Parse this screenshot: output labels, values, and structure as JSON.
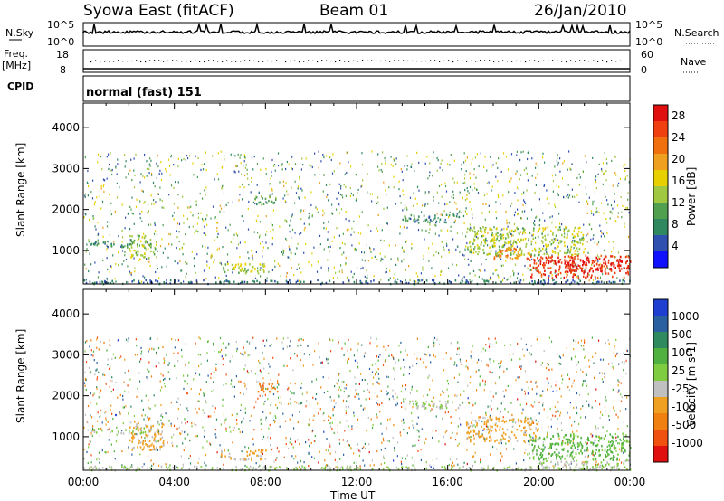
{
  "header": {
    "station": "Syowa East (fitACF)",
    "beam": "Beam 01",
    "date": "26/Jan/2010"
  },
  "strip_labels": {
    "nsky": "N.Sky",
    "nsearch": "N.Search",
    "freq_line1": "Freq.",
    "freq_line2": "[MHz]",
    "nave": "Nave",
    "cpid": "CPID",
    "cpid_value": "normal (fast) 151",
    "noise_ticks_top": "10^5",
    "noise_ticks_bottom": "10^0",
    "freq_ticks": [
      "18",
      "8"
    ],
    "nave_ticks": [
      "60",
      "0"
    ]
  },
  "chart_data": [
    {
      "type": "heatmap",
      "title": "",
      "xlabel": "Time UT",
      "ylabel": "Slant Range [km]",
      "x_ticks": [
        "00:00",
        "04:00",
        "08:00",
        "12:00",
        "16:00",
        "20:00",
        "00:00"
      ],
      "y_ticks": [
        1000,
        2000,
        3000,
        4000
      ],
      "ylim": [
        180,
        4600
      ],
      "xlim_hours": [
        0,
        24
      ],
      "colorbar": {
        "label": "Power [dB]",
        "ticks": [
          "4",
          "8",
          "12",
          "16",
          "20",
          "24",
          "28"
        ],
        "range": [
          0,
          30
        ],
        "colors": [
          "#1010ff",
          "#3050b0",
          "#308860",
          "#50a050",
          "#a0c840",
          "#e8d000",
          "#f0a020",
          "#f07010",
          "#f04010",
          "#e01010"
        ]
      },
      "features": [
        {
          "t0": 0.0,
          "t1": 24.0,
          "r0": 200,
          "r1": 300,
          "value": 6
        },
        {
          "t0": 0.3,
          "t1": 3.0,
          "r0": 1100,
          "r1": 1250,
          "value": 8
        },
        {
          "t0": 2.0,
          "t1": 3.2,
          "r0": 800,
          "r1": 1400,
          "value": 14
        },
        {
          "t0": 6.0,
          "t1": 8.0,
          "r0": 450,
          "r1": 700,
          "value": 14
        },
        {
          "t0": 7.5,
          "t1": 8.5,
          "r0": 2100,
          "r1": 2350,
          "value": 10
        },
        {
          "t0": 16.8,
          "t1": 22.0,
          "r0": 900,
          "r1": 1600,
          "value": 14
        },
        {
          "t0": 18.0,
          "t1": 19.5,
          "r0": 800,
          "r1": 1100,
          "value": 22
        },
        {
          "t0": 19.5,
          "t1": 24.0,
          "r0": 350,
          "r1": 900,
          "value": 26
        },
        {
          "t0": 20.5,
          "t1": 24.0,
          "r0": 500,
          "r1": 800,
          "value": 28
        },
        {
          "t0": 14.0,
          "t1": 16.5,
          "r0": 1700,
          "r1": 1900,
          "value": 8
        }
      ]
    },
    {
      "type": "heatmap",
      "title": "",
      "xlabel": "Time UT",
      "ylabel": "Slant Range [km]",
      "x_ticks": [
        "00:00",
        "04:00",
        "08:00",
        "12:00",
        "16:00",
        "20:00",
        "00:00"
      ],
      "y_ticks": [
        1000,
        2000,
        3000,
        4000
      ],
      "ylim": [
        180,
        4600
      ],
      "xlim_hours": [
        0,
        24
      ],
      "colorbar": {
        "label": "Velocity [m s-1]",
        "ticks": [
          "1000",
          "500",
          "100",
          "25",
          "-25",
          "-100",
          "-500",
          "-1000"
        ],
        "range": [
          -1200,
          1200
        ],
        "colors": [
          "#1f3fd0",
          "#2a60a0",
          "#2f8a60",
          "#50b040",
          "#80cc40",
          "#c0c0c0",
          "#f0a020",
          "#f08010",
          "#f05010",
          "#e01010"
        ]
      },
      "features": [
        {
          "t0": 0.0,
          "t1": 24.0,
          "r0": 200,
          "r1": 300,
          "value": 0
        },
        {
          "t0": 0.3,
          "t1": 3.0,
          "r0": 1100,
          "r1": 1250,
          "value": 0
        },
        {
          "t0": 2.0,
          "t1": 3.5,
          "r0": 700,
          "r1": 1400,
          "value": -300
        },
        {
          "t0": 6.0,
          "t1": 8.0,
          "r0": 450,
          "r1": 700,
          "value": -250
        },
        {
          "t0": 7.5,
          "t1": 8.5,
          "r0": 2100,
          "r1": 2350,
          "value": -600
        },
        {
          "t0": 16.8,
          "t1": 20.0,
          "r0": 900,
          "r1": 1500,
          "value": -300
        },
        {
          "t0": 19.5,
          "t1": 24.0,
          "r0": 450,
          "r1": 1100,
          "value": 300
        },
        {
          "t0": 20.0,
          "t1": 24.0,
          "r0": 250,
          "r1": 450,
          "value": 0
        },
        {
          "t0": 14.0,
          "t1": 16.5,
          "r0": 1700,
          "r1": 1900,
          "value": 0
        }
      ]
    }
  ]
}
